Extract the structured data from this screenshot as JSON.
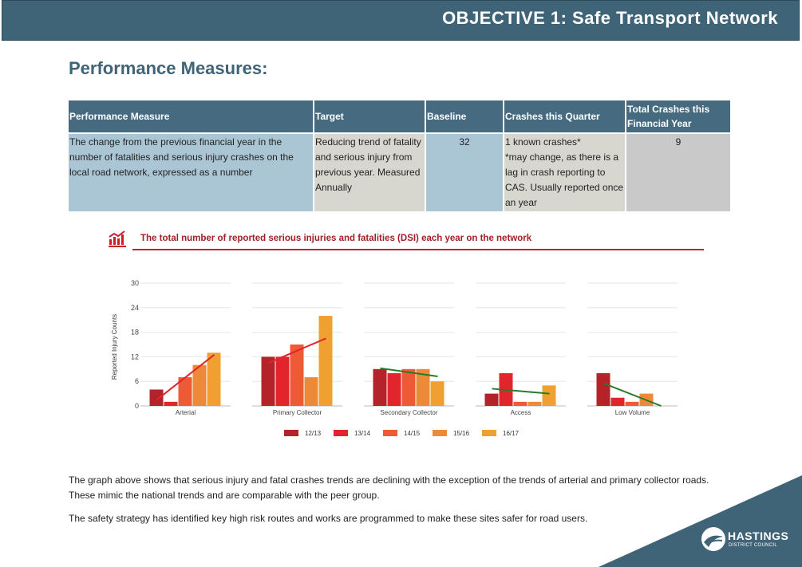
{
  "header": {
    "title": "OBJECTIVE 1: Safe Transport Network"
  },
  "section_title": "Performance Measures:",
  "table": {
    "headers": [
      "Performance Measure",
      "Target",
      "Baseline",
      "Crashes this Quarter",
      "Total Crashes this Financial Year"
    ],
    "row": {
      "measure": "The change from the previous financial year  in the number of fatalities and serious  injury crashes on the local road network,  expressed as a number",
      "target": "Reducing trend of fatality and serious injury from previous year. Measured Annually",
      "baseline": "32",
      "quarter_line1": "1 known crashes*",
      "quarter_line2": "*may change, as there is a lag in crash reporting to CAS. Usually reported once an year",
      "total": "9"
    }
  },
  "chart_data": {
    "type": "bar",
    "title": "The total number of reported serious injuries and fatalities (DSI) each year on the network",
    "ylabel": "Reported Injury Counts",
    "ylim": [
      0,
      30
    ],
    "yticks": [
      0,
      6,
      12,
      18,
      24,
      30
    ],
    "categories": [
      "Arterial",
      "Primary Collector",
      "Secondary Collector",
      "Access",
      "Low Volume"
    ],
    "series": [
      {
        "name": "12/13",
        "color": "#b5232a",
        "values": [
          4,
          12,
          9,
          3,
          8
        ]
      },
      {
        "name": "13/14",
        "color": "#e0262c",
        "values": [
          1,
          12,
          8,
          8,
          2
        ]
      },
      {
        "name": "14/15",
        "color": "#ef5a36",
        "values": [
          7,
          15,
          9,
          1,
          1
        ]
      },
      {
        "name": "15/16",
        "color": "#ec8a3a",
        "values": [
          10,
          7,
          9,
          1,
          3
        ]
      },
      {
        "name": "16/17",
        "color": "#efa030",
        "values": [
          13,
          22,
          6,
          5,
          0
        ]
      }
    ],
    "trendlines": [
      {
        "category": "Arterial",
        "start": 1.5,
        "end": 12.5,
        "color": "#e0262c"
      },
      {
        "category": "Primary Collector",
        "start": 10.5,
        "end": 16.5,
        "color": "#e0262c"
      },
      {
        "category": "Secondary Collector",
        "start": 9.2,
        "end": 7.2,
        "color": "#2a7a2a"
      },
      {
        "category": "Access",
        "start": 4.2,
        "end": 3.0,
        "color": "#2a7a2a"
      },
      {
        "category": "Low Volume",
        "start": 5.5,
        "end": 0,
        "color": "#2a7a2a"
      }
    ]
  },
  "paragraphs": {
    "p1": "The graph above shows that serious injury and fatal crashes trends are declining with the exception of the trends of arterial and primary collector roads. These mimic the national trends and are comparable with the peer group.",
    "p2": "The safety strategy has identified key high risk routes and works are programmed to make these sites safer for road users."
  },
  "logo": {
    "name": "HASTINGS",
    "sub": "DISTRICT COUNCIL"
  },
  "colors": {
    "header": "#3f6478",
    "accent_red": "#c8202a",
    "cell_blue": "#aac6d4",
    "cell_grey": "#d7d7d0"
  }
}
